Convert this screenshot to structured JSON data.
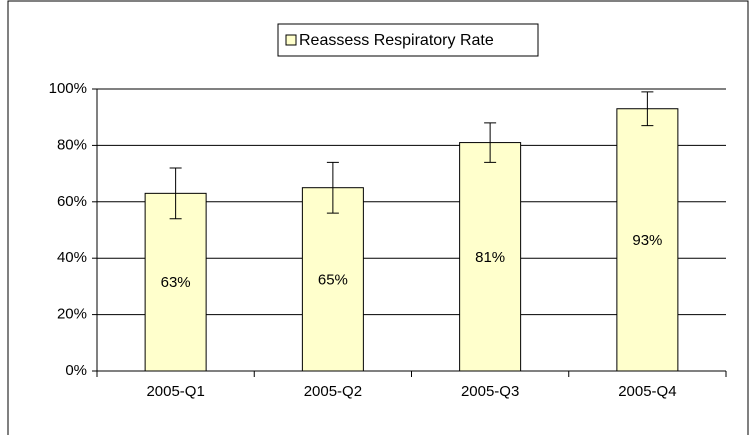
{
  "chart_data": {
    "type": "bar",
    "categories": [
      "2005-Q1",
      "2005-Q2",
      "2005-Q3",
      "2005-Q4"
    ],
    "series": [
      {
        "name": "Reassess Respiratory Rate",
        "color": "#ffffcc",
        "values": [
          63,
          65,
          81,
          93
        ],
        "value_labels": [
          "63%",
          "65%",
          "81%",
          "93%"
        ],
        "errors": [
          9,
          9,
          7,
          6
        ]
      }
    ],
    "ylim": [
      0,
      100
    ],
    "yticks": [
      {
        "value": 0,
        "label": "0%"
      },
      {
        "value": 20,
        "label": "20%"
      },
      {
        "value": 40,
        "label": "40%"
      },
      {
        "value": 60,
        "label": "60%"
      },
      {
        "value": 80,
        "label": "80%"
      },
      {
        "value": 100,
        "label": "100%"
      }
    ],
    "grid": true,
    "legend": "top"
  }
}
